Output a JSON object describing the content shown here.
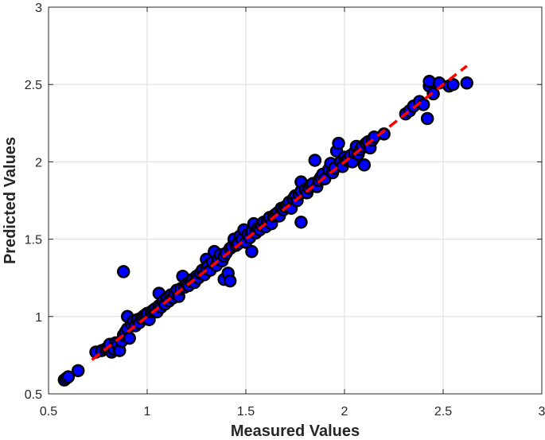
{
  "chart_data": {
    "type": "scatter",
    "title": "",
    "xlabel": "Measured Values",
    "ylabel": "Predicted Values",
    "xlim": [
      0.5,
      3
    ],
    "ylim": [
      0.5,
      3
    ],
    "xticks": [
      "0.5",
      "1",
      "1.5",
      "2",
      "2.5",
      "3"
    ],
    "yticks": [
      "0.5",
      "1",
      "1.5",
      "2",
      "2.5",
      "3"
    ],
    "grid": true,
    "marker_fill": "#0000ff",
    "marker_edge": "#000000",
    "fit_line_color": "#ff0000",
    "fit_line": {
      "style": "dashed",
      "x": [
        0.72,
        2.62
      ],
      "y": [
        0.72,
        2.62
      ]
    },
    "series": [
      {
        "points": [
          [
            0.58,
            0.59
          ],
          [
            0.59,
            0.6
          ],
          [
            0.6,
            0.61
          ],
          [
            0.65,
            0.65
          ],
          [
            0.74,
            0.77
          ],
          [
            0.77,
            0.78
          ],
          [
            0.79,
            0.79
          ],
          [
            0.8,
            0.8
          ],
          [
            0.81,
            0.82
          ],
          [
            0.82,
            0.77
          ],
          [
            0.83,
            0.79
          ],
          [
            0.84,
            0.83
          ],
          [
            0.85,
            0.82
          ],
          [
            0.86,
            0.78
          ],
          [
            0.87,
            0.84
          ],
          [
            0.88,
            0.88
          ],
          [
            0.88,
            1.29
          ],
          [
            0.89,
            0.9
          ],
          [
            0.9,
            0.92
          ],
          [
            0.9,
            1.0
          ],
          [
            0.91,
            0.86
          ],
          [
            0.92,
            0.95
          ],
          [
            0.93,
            0.97
          ],
          [
            0.94,
            0.94
          ],
          [
            0.95,
            0.98
          ],
          [
            0.96,
            0.96
          ],
          [
            0.97,
            0.99
          ],
          [
            0.98,
            1.0
          ],
          [
            0.99,
            1.01
          ],
          [
            1.0,
            1.02
          ],
          [
            1.01,
            0.98
          ],
          [
            1.02,
            1.03
          ],
          [
            1.03,
            1.04
          ],
          [
            1.04,
            1.05
          ],
          [
            1.05,
            1.03
          ],
          [
            1.06,
            1.07
          ],
          [
            1.06,
            1.15
          ],
          [
            1.07,
            1.06
          ],
          [
            1.08,
            1.1
          ],
          [
            1.09,
            1.08
          ],
          [
            1.1,
            1.12
          ],
          [
            1.11,
            1.1
          ],
          [
            1.12,
            1.14
          ],
          [
            1.13,
            1.12
          ],
          [
            1.14,
            1.15
          ],
          [
            1.15,
            1.17
          ],
          [
            1.16,
            1.13
          ],
          [
            1.17,
            1.18
          ],
          [
            1.18,
            1.26
          ],
          [
            1.19,
            1.19
          ],
          [
            1.2,
            1.21
          ],
          [
            1.21,
            1.2
          ],
          [
            1.22,
            1.23
          ],
          [
            1.23,
            1.24
          ],
          [
            1.24,
            1.22
          ],
          [
            1.25,
            1.26
          ],
          [
            1.26,
            1.25
          ],
          [
            1.27,
            1.28
          ],
          [
            1.28,
            1.3
          ],
          [
            1.29,
            1.27
          ],
          [
            1.3,
            1.31
          ],
          [
            1.3,
            1.37
          ],
          [
            1.31,
            1.33
          ],
          [
            1.32,
            1.3
          ],
          [
            1.33,
            1.35
          ],
          [
            1.34,
            1.42
          ],
          [
            1.35,
            1.33
          ],
          [
            1.36,
            1.37
          ],
          [
            1.37,
            1.4
          ],
          [
            1.38,
            1.36
          ],
          [
            1.39,
            1.39
          ],
          [
            1.39,
            1.24
          ],
          [
            1.4,
            1.41
          ],
          [
            1.41,
            1.28
          ],
          [
            1.42,
            1.23
          ],
          [
            1.42,
            1.44
          ],
          [
            1.43,
            1.45
          ],
          [
            1.44,
            1.5
          ],
          [
            1.45,
            1.46
          ],
          [
            1.46,
            1.47
          ],
          [
            1.47,
            1.52
          ],
          [
            1.48,
            1.5
          ],
          [
            1.49,
            1.56
          ],
          [
            1.5,
            1.48
          ],
          [
            1.51,
            1.53
          ],
          [
            1.52,
            1.51
          ],
          [
            1.53,
            1.42
          ],
          [
            1.53,
            1.55
          ],
          [
            1.54,
            1.6
          ],
          [
            1.55,
            1.54
          ],
          [
            1.56,
            1.57
          ],
          [
            1.57,
            1.56
          ],
          [
            1.58,
            1.59
          ],
          [
            1.59,
            1.61
          ],
          [
            1.6,
            1.58
          ],
          [
            1.61,
            1.62
          ],
          [
            1.62,
            1.64
          ],
          [
            1.63,
            1.6
          ],
          [
            1.64,
            1.65
          ],
          [
            1.65,
            1.66
          ],
          [
            1.66,
            1.67
          ],
          [
            1.67,
            1.65
          ],
          [
            1.68,
            1.7
          ],
          [
            1.69,
            1.69
          ],
          [
            1.7,
            1.71
          ],
          [
            1.71,
            1.72
          ],
          [
            1.72,
            1.74
          ],
          [
            1.73,
            1.7
          ],
          [
            1.74,
            1.76
          ],
          [
            1.75,
            1.78
          ],
          [
            1.76,
            1.75
          ],
          [
            1.77,
            1.79
          ],
          [
            1.78,
            1.61
          ],
          [
            1.78,
            1.81
          ],
          [
            1.78,
            1.87
          ],
          [
            1.8,
            1.82
          ],
          [
            1.81,
            1.8
          ],
          [
            1.82,
            1.83
          ],
          [
            1.83,
            1.85
          ],
          [
            1.84,
            1.86
          ],
          [
            1.85,
            2.01
          ],
          [
            1.86,
            1.84
          ],
          [
            1.87,
            1.88
          ],
          [
            1.88,
            1.9
          ],
          [
            1.89,
            1.92
          ],
          [
            1.9,
            1.89
          ],
          [
            1.92,
            1.95
          ],
          [
            1.93,
            1.99
          ],
          [
            1.94,
            1.93
          ],
          [
            1.95,
            1.96
          ],
          [
            1.96,
            2.07
          ],
          [
            1.97,
            2.12
          ],
          [
            1.98,
            2.0
          ],
          [
            1.99,
            1.97
          ],
          [
            2.0,
            2.03
          ],
          [
            2.01,
            2.01
          ],
          [
            2.02,
            2.02
          ],
          [
            2.03,
            2.04
          ],
          [
            2.04,
            2.0
          ],
          [
            2.05,
            2.06
          ],
          [
            2.06,
            2.1
          ],
          [
            2.07,
            2.05
          ],
          [
            2.08,
            2.08
          ],
          [
            2.09,
            2.1
          ],
          [
            2.1,
            1.98
          ],
          [
            2.11,
            2.12
          ],
          [
            2.12,
            2.13
          ],
          [
            2.13,
            2.09
          ],
          [
            2.14,
            2.14
          ],
          [
            2.15,
            2.16
          ],
          [
            2.2,
            2.18
          ],
          [
            2.31,
            2.31
          ],
          [
            2.33,
            2.33
          ],
          [
            2.35,
            2.36
          ],
          [
            2.38,
            2.39
          ],
          [
            2.4,
            2.37
          ],
          [
            2.42,
            2.28
          ],
          [
            2.43,
            2.49
          ],
          [
            2.43,
            2.52
          ],
          [
            2.45,
            2.44
          ],
          [
            2.48,
            2.51
          ],
          [
            2.53,
            2.49
          ],
          [
            2.55,
            2.5
          ],
          [
            2.62,
            2.51
          ]
        ]
      }
    ]
  }
}
